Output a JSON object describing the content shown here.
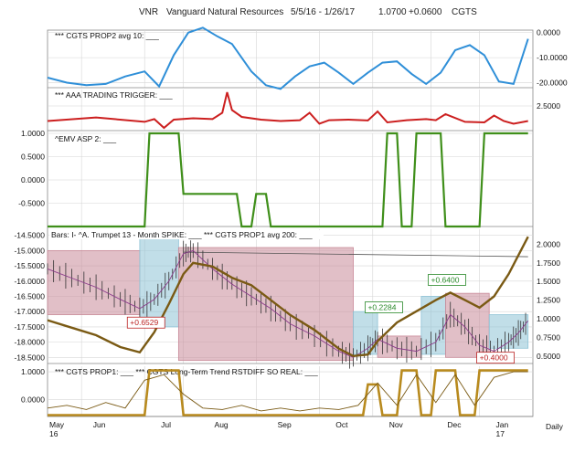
{
  "header": {
    "symbol": "VNR",
    "name": "Vanguard Natural Resources",
    "date_range": "5/5/16 - 1/26/17",
    "price": "1.0700",
    "change": "+0.0600",
    "study": "CGTS"
  },
  "colors": {
    "blue": "#2f8fd8",
    "red": "#cc1f1f",
    "green": "#3f8f1a",
    "brown": "#7a5a14",
    "gold": "#b88a1e",
    "pink_box": "#c98a99",
    "blue_box": "#8ec3d6",
    "grid": "#d6d6d6",
    "axis": "#888888"
  },
  "x_labels": [
    "May",
    "Jun",
    "Jul",
    "Aug",
    "Sep",
    "Oct",
    "Nov",
    "Dec",
    "Jan"
  ],
  "x_year_labels": [
    "16",
    "17"
  ],
  "period": "Daily",
  "chart_data": [
    {
      "type": "line",
      "title": "*** CGTS PROP2 avg 10: ___",
      "ylim": [
        -22,
        1
      ],
      "y_ticks": [
        "0.0000",
        "-10.0000",
        "-20.0000"
      ],
      "y_tick_values": [
        0,
        -10,
        -20
      ],
      "series": [
        {
          "x": [
            0,
            4,
            8,
            12,
            16,
            20,
            23,
            26,
            29,
            32,
            35,
            38,
            42,
            45,
            48,
            51,
            54,
            57,
            60,
            63,
            66,
            69,
            72,
            75,
            78,
            81,
            84,
            87,
            90,
            93,
            96,
            99
          ],
          "values": [
            -18,
            -20,
            -21,
            -20.5,
            -17.5,
            -15.5,
            -21.5,
            -9,
            0,
            2,
            -1.5,
            -4.5,
            -15.5,
            -21,
            -22.5,
            -17.5,
            -13.5,
            -12,
            -16,
            -20.5,
            -16,
            -12,
            -11.5,
            -16.5,
            -20.5,
            -16,
            -7,
            -5,
            -9,
            -19.5,
            -20.5,
            -2.5
          ]
        }
      ]
    },
    {
      "type": "line",
      "title": "*** AAA TRADING TRIGGER: ___",
      "ylim": [
        1.6,
        3.1
      ],
      "y_ticks": [
        "2.5000"
      ],
      "y_tick_values": [
        2.5
      ],
      "series": [
        {
          "x": [
            0,
            10,
            20,
            22,
            24,
            26,
            30,
            34,
            36,
            37,
            38,
            40,
            44,
            48,
            52,
            54,
            56,
            58,
            62,
            66,
            68,
            70,
            74,
            78,
            80,
            82,
            86,
            90,
            92,
            94,
            96,
            99
          ],
          "values": [
            1.95,
            2.08,
            1.92,
            2.02,
            1.7,
            2.0,
            2.05,
            2.02,
            2.25,
            3.0,
            2.35,
            2.1,
            2.0,
            1.95,
            1.98,
            2.25,
            1.85,
            1.98,
            2.0,
            1.97,
            2.3,
            1.9,
            1.98,
            2.02,
            1.98,
            2.2,
            1.92,
            1.9,
            2.15,
            1.95,
            1.85,
            1.95
          ]
        }
      ]
    },
    {
      "type": "line",
      "title": "^EMV ASP 2: ___",
      "ylim": [
        -1.0,
        1.0
      ],
      "y_ticks": [
        "1.0000",
        "0.5000",
        "0.0000",
        "-0.5000"
      ],
      "y_tick_values": [
        1,
        0.5,
        0,
        -0.5
      ],
      "series": [
        {
          "x": [
            0,
            20,
            21,
            27,
            28,
            39,
            40,
            42,
            43,
            45,
            46,
            69,
            70,
            72,
            73,
            75,
            76,
            78,
            79,
            81,
            82,
            89,
            90,
            92,
            93,
            99
          ],
          "values": [
            -1,
            -1,
            1,
            1,
            -0.3,
            -0.3,
            -1,
            -1,
            -0.3,
            -0.3,
            -1,
            -1,
            1,
            1,
            -1,
            -1,
            1,
            1,
            1,
            1,
            -1,
            -1,
            1,
            1,
            1,
            1
          ]
        }
      ]
    },
    {
      "type": "line",
      "title": "Bars: I- ^A. Trumpet 13 - Month SPIKE: ___ *** CGTS PROP1 avg 200: ___",
      "ylim": [
        -18.7,
        -14.3
      ],
      "y_ticks": [
        "-14.5000",
        "-15.0000",
        "-15.5000",
        "-16.0000",
        "-16.5000",
        "-17.0000",
        "-17.5000",
        "-18.0000",
        "-18.5000"
      ],
      "y_tick_values": [
        -14.5,
        -15,
        -15.5,
        -16,
        -16.5,
        -17,
        -17.5,
        -18,
        -18.5
      ],
      "right_ticks": [
        "2.0000",
        "1.7500",
        "1.5000",
        "1.2500",
        "1.0000",
        "0.7500",
        "0.5000"
      ],
      "right_tick_values": [
        2.0,
        1.75,
        1.5,
        1.25,
        1.0,
        0.75,
        0.5
      ],
      "right_ylim": [
        0.4,
        2.2
      ],
      "annotations": [
        "+0.6529",
        "+0.2284",
        "+0.6400",
        "+0.4000"
      ],
      "series": [
        {
          "name": "CGTS PROP1 avg 200",
          "x": [
            0,
            5,
            10,
            15,
            19,
            22,
            25,
            28,
            30,
            34,
            38,
            42,
            46,
            50,
            55,
            60,
            63,
            66,
            68,
            72,
            76,
            80,
            83,
            86,
            89,
            92,
            95,
            97,
            99
          ],
          "values": [
            0.98,
            0.88,
            0.78,
            0.62,
            0.55,
            0.82,
            1.2,
            1.6,
            1.75,
            1.7,
            1.55,
            1.45,
            1.25,
            1.05,
            0.85,
            0.6,
            0.5,
            0.52,
            0.7,
            0.95,
            1.1,
            1.25,
            1.35,
            1.25,
            1.15,
            1.3,
            1.6,
            1.85,
            2.1
          ]
        },
        {
          "name": "price",
          "x": [
            0,
            5,
            10,
            15,
            19,
            22,
            25,
            28,
            30,
            34,
            38,
            42,
            46,
            50,
            55,
            60,
            63,
            66,
            68,
            72,
            76,
            80,
            83,
            86,
            89,
            92,
            95,
            97,
            99
          ],
          "values": [
            -15.6,
            -15.9,
            -16.2,
            -16.6,
            -16.9,
            -16.6,
            -16.0,
            -15.1,
            -15.0,
            -15.6,
            -16.1,
            -16.5,
            -16.9,
            -17.4,
            -17.8,
            -18.3,
            -18.5,
            -18.2,
            -17.9,
            -18.2,
            -18.3,
            -18.0,
            -17.1,
            -17.5,
            -18.1,
            -18.3,
            -18.0,
            -17.7,
            -17.3
          ]
        }
      ]
    },
    {
      "type": "line",
      "title": "*** CGTS PROP1: ___ *** CGTS Long-Term Trend RSTDIFF SO REAL: ___",
      "ylim": [
        -0.6,
        1.2
      ],
      "y_ticks": [
        "1.0000",
        "0.0000"
      ],
      "y_tick_values": [
        1,
        0
      ],
      "series": [
        {
          "name": "CGTS Long-Term Trend RSTDIFF SO REAL",
          "x": [
            0,
            20,
            21,
            27,
            28,
            65,
            66,
            68,
            69,
            72,
            73,
            76,
            77,
            79,
            80,
            84,
            85,
            88,
            89,
            92,
            93,
            99
          ],
          "values": [
            -0.55,
            -0.55,
            1.05,
            1.05,
            -0.55,
            -0.55,
            0.55,
            0.55,
            -0.55,
            -0.55,
            1.05,
            1.05,
            -0.55,
            -0.55,
            1.05,
            1.05,
            -0.55,
            -0.55,
            1.05,
            1.05,
            1.05,
            1.05
          ]
        },
        {
          "name": "CGTS PROP1",
          "x": [
            0,
            4,
            8,
            12,
            16,
            20,
            24,
            28,
            32,
            36,
            40,
            44,
            48,
            52,
            56,
            60,
            64,
            68,
            72,
            76,
            80,
            84,
            88,
            92,
            96,
            99
          ],
          "values": [
            -0.3,
            -0.2,
            -0.35,
            -0.1,
            -0.3,
            0.7,
            0.9,
            0.2,
            -0.3,
            -0.35,
            -0.2,
            -0.4,
            -0.3,
            -0.4,
            -0.3,
            -0.35,
            -0.2,
            0.6,
            -0.2,
            0.9,
            -0.1,
            0.9,
            -0.2,
            0.8,
            1.0,
            1.0
          ]
        }
      ]
    }
  ]
}
